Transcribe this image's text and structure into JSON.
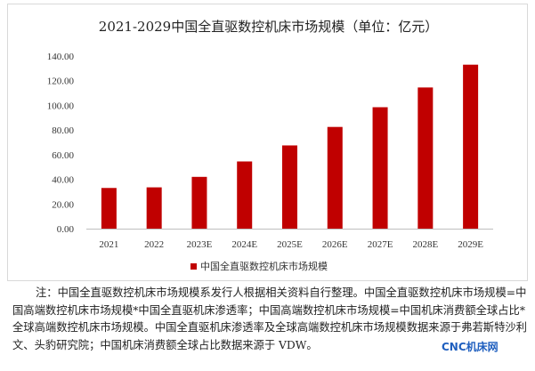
{
  "chart_data": {
    "type": "bar",
    "title": "2021-2029中国全直驱数控机床市场规模（单位：亿元）",
    "categories": [
      "2021",
      "2022",
      "2023E",
      "2024E",
      "2025E",
      "2026E",
      "2027E",
      "2028E",
      "2029E"
    ],
    "series": [
      {
        "name": "中国全直驱数控机床市场规模",
        "values": [
          33.0,
          33.5,
          42.0,
          54.5,
          67.5,
          82.5,
          98.5,
          114.5,
          133.0
        ],
        "color": "#c00000"
      }
    ],
    "ylim": [
      0,
      140
    ],
    "yticks": [
      "0.00",
      "20.00",
      "40.00",
      "60.00",
      "80.00",
      "100.00",
      "120.00",
      "140.00"
    ],
    "grid": false,
    "legend": "bottom"
  },
  "note": "注：中国全直驱数控机床市场规模系发行人根据相关资料自行整理。中国全直驱数控机床市场规模=中国高端数控机床市场规模*中国全直驱机床渗透率；中国高端数控机床市场规模=中国机床消费额全球占比*全球高端数控机床市场规模。中国全直驱机床渗透率及全球高端数控机床市场规模数据来源于弗若斯特沙利文、头豹研究院；中国机床消费额全球占比数据来源于 VDW。",
  "watermark": "CNC机床网"
}
